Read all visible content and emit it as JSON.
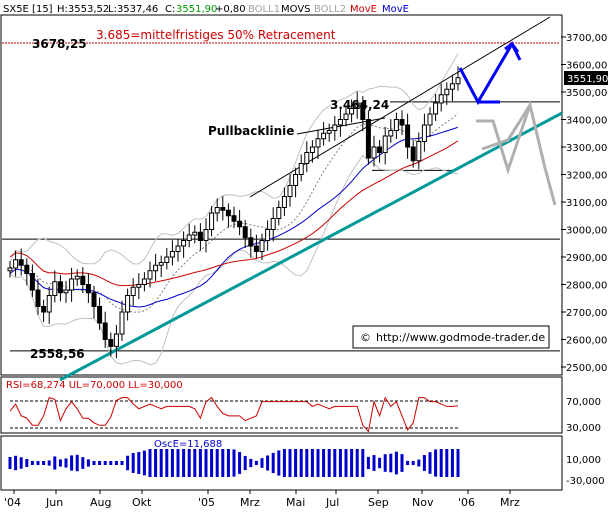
{
  "chart_data": {
    "type": "candlestick",
    "header": {
      "symbol": "SX5E [15]",
      "high": "H:3553,52",
      "low": "L:3537,46",
      "close_prefix": "C:",
      "close": "3551,90",
      "change": "+0,80",
      "studies": [
        "BOLL1",
        "MOVS",
        "BOLL2",
        "MovE",
        "MovE"
      ]
    },
    "x_ticks": [
      "'04",
      "Jun",
      "Aug",
      "Okt",
      "'05",
      "Mrz",
      "Mai",
      "Jul",
      "Sep",
      "Nov",
      "'06",
      "Mrz"
    ],
    "y_ticks": [
      2500,
      2600,
      2700,
      2800,
      2900,
      3000,
      3100,
      3200,
      3300,
      3400,
      3500,
      3600,
      3700
    ],
    "y_tick_labels": [
      "2500,00",
      "2600,00",
      "2700,00",
      "2800,00",
      "2900,00",
      "3000,00",
      "3100,00",
      "3200,00",
      "3300,00",
      "3400,00",
      "3500,00",
      "3600,00",
      "3700,00"
    ],
    "ylim": [
      2480,
      3770
    ],
    "price_label": "3551,90",
    "annotations": {
      "retracement_value": "3678,25",
      "retracement_text": "3.685=mittelfristiges 50% Retracement",
      "high_value": "3.464,24",
      "pullback_text": "Pullbacklinie",
      "low_value": "2558,56",
      "copyright": "http://www.godmode-trader.de"
    },
    "levels": {
      "retracement": 3678.25,
      "high": 3464.24,
      "low": 2558.56,
      "horizontal": 2965,
      "support_box": 3215
    },
    "close_series": [
      2860,
      2890,
      2870,
      2840,
      2780,
      2720,
      2700,
      2760,
      2810,
      2770,
      2780,
      2820,
      2830,
      2800,
      2770,
      2720,
      2660,
      2600,
      2575,
      2620,
      2700,
      2760,
      2790,
      2800,
      2820,
      2850,
      2870,
      2880,
      2900,
      2920,
      2940,
      2960,
      2980,
      2990,
      2960,
      3000,
      3060,
      3080,
      3070,
      3050,
      3030,
      3010,
      2970,
      2940,
      2920,
      2960,
      3000,
      3040,
      3080,
      3120,
      3160,
      3200,
      3240,
      3280,
      3300,
      3330,
      3350,
      3360,
      3380,
      3400,
      3420,
      3440,
      3460,
      3400,
      3260,
      3300,
      3280,
      3340,
      3360,
      3400,
      3380,
      3300,
      3250,
      3320,
      3380,
      3420,
      3460,
      3490,
      3510,
      3530,
      3552
    ],
    "rsi": {
      "label": "RSI=68,274 UL=70,000 LL=30,000",
      "upper": 70,
      "lower": 30,
      "ticks": [
        "70,000",
        "30,000"
      ]
    },
    "osc": {
      "label": "OscE=11,688",
      "ticks": [
        "10,000",
        "-30,000"
      ]
    },
    "colors": {
      "ma200": "#cc0000",
      "ma50": "#0000cc",
      "trend": "#009999",
      "projection": "#0000ff",
      "bollinger": "#c0c0c0",
      "retracement": "#cc0000"
    }
  }
}
